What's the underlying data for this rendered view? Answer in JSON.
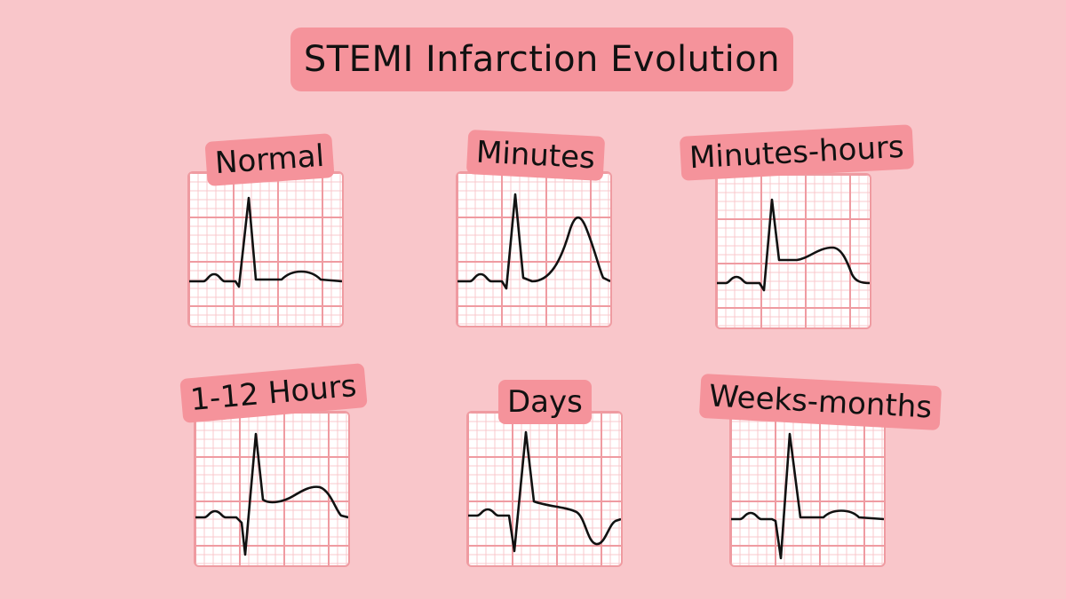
{
  "title": "STEMI Infarction Evolution",
  "colors": {
    "background": "#f9c6ca",
    "label": "#f5939b",
    "grid_major": "#ef9ba1",
    "grid_minor": "#f8c8cc",
    "trace": "#111111"
  },
  "stages": [
    {
      "label": "Normal",
      "finding": "normal-ecg"
    },
    {
      "label": "Minutes",
      "finding": "hyperacute-t-waves"
    },
    {
      "label": "Minutes-hours",
      "finding": "st-elevation"
    },
    {
      "label": "1-12 Hours",
      "finding": "q-wave-with-st-elevation"
    },
    {
      "label": "Days",
      "finding": "t-wave-inversion"
    },
    {
      "label": "Weeks-months",
      "finding": "q-wave-persistent"
    }
  ]
}
